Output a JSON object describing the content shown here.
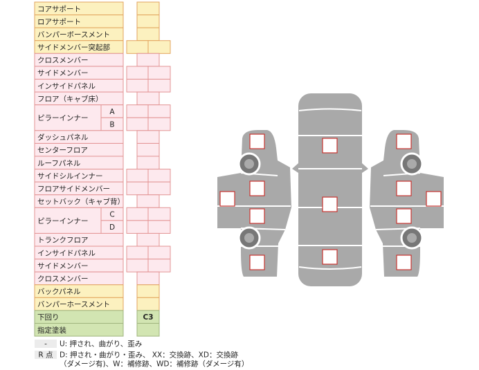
{
  "parts": [
    {
      "label": "コアサポート"
    },
    {
      "label": "ロアサポート"
    },
    {
      "label": "バンパーボースメント"
    },
    {
      "label": "サイドメンバー突起部"
    },
    {
      "label": "クロスメンバー"
    },
    {
      "label": "サイドメンバー"
    },
    {
      "label": "インサイドパネル"
    },
    {
      "label": "フロア（キャブ床）"
    },
    {
      "label": "ピラーインナー",
      "sub": [
        "A",
        "B"
      ]
    },
    {
      "label": "ダッシュパネル"
    },
    {
      "label": "センターフロア"
    },
    {
      "label": "ルーフパネル"
    },
    {
      "label": "サイドシルインナー"
    },
    {
      "label": "フロアサイドメンバー"
    },
    {
      "label": "セットバック（キャブ背）"
    },
    {
      "label": "ピラーインナー",
      "sub": [
        "C",
        "D"
      ]
    },
    {
      "label": "トランクフロア"
    },
    {
      "label": "インサイドパネル"
    },
    {
      "label": "サイドメンバー"
    },
    {
      "label": "クロスメンバー"
    },
    {
      "label": "バックパネル"
    },
    {
      "label": "バンパーホースメント"
    },
    {
      "label": "下回り",
      "value": "C3"
    },
    {
      "label": "指定塗装"
    }
  ],
  "legend": [
    {
      "key": "-",
      "lines": [
        "U: 押され、曲がり、歪み"
      ]
    },
    {
      "key": "R 点",
      "lines": [
        "D: 押され・曲がり・歪み、 XX：交換跡、XD：交換跡",
        "（ダメージ有)、W：補修跡、WD：補修跡（ダメージ有）"
      ]
    }
  ]
}
